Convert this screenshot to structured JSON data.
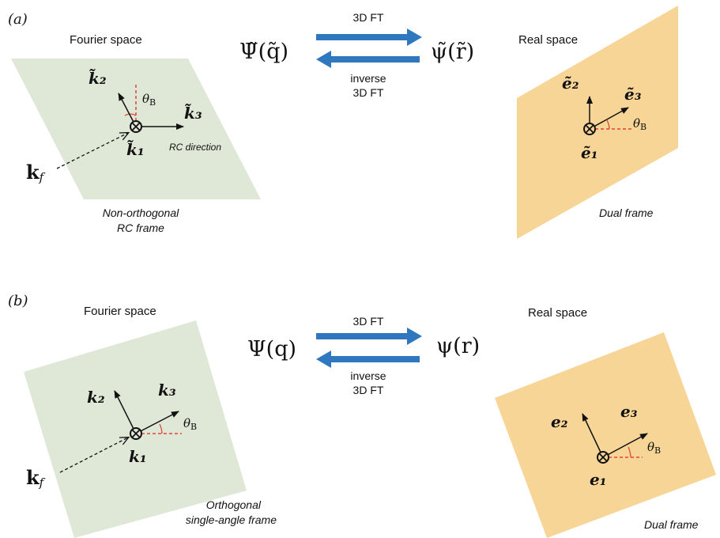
{
  "colors": {
    "fourier_fill": "#dfe8d6",
    "real_fill": "#f7d596",
    "arrow_blue": "#2f78bf",
    "angle_red": "#e0443c",
    "ink": "#111111"
  },
  "panel_a": {
    "label": "(a)",
    "fourier_title": "Fourier space",
    "real_title": "Real space",
    "left_function": "Ψ̃(q̃)",
    "right_function": "ψ̃(r̃)",
    "forward_label": "3D FT",
    "inverse_label_line1": "inverse",
    "inverse_label_line2": "3D FT",
    "k1": "k̃₁",
    "k2": "k̃₂",
    "k3": "k̃₃",
    "kf": "k",
    "kf_sub": "f",
    "theta": "θ",
    "theta_sub": "B",
    "rc_direction": "RC direction",
    "frame_line1": "Non-orthogonal",
    "frame_line2": "RC frame",
    "e1": "ẽ₁",
    "e2": "ẽ₂",
    "e3": "ẽ₃",
    "dual_frame": "Dual frame"
  },
  "panel_b": {
    "label": "(b)",
    "fourier_title": "Fourier space",
    "real_title": "Real space",
    "left_function": "Ψ(q)",
    "right_function": "ψ(r)",
    "forward_label": "3D FT",
    "inverse_label_line1": "inverse",
    "inverse_label_line2": "3D FT",
    "k1": "k₁",
    "k2": "k₂",
    "k3": "k₃",
    "kf": "k",
    "kf_sub": "f",
    "theta": "θ",
    "theta_sub": "B",
    "frame_line1": "Orthogonal",
    "frame_line2": "single-angle frame",
    "e1": "e₁",
    "e2": "e₂",
    "e3": "e₃",
    "dual_frame": "Dual frame"
  }
}
